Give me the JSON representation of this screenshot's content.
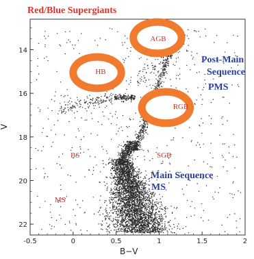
{
  "chart_data": {
    "type": "scatter",
    "title": "Red/Blue Supergiants",
    "xlabel": "B−V",
    "ylabel": "V",
    "xlim": [
      -0.5,
      2.0
    ],
    "ylim": [
      22.5,
      12.6
    ],
    "y_inverted": true,
    "xticks": [
      "-0.5",
      "0",
      "0.5",
      "1",
      "1.5",
      "2"
    ],
    "yticks": [
      "14",
      "16",
      "18",
      "20",
      "22"
    ],
    "grid": false,
    "colors": {
      "ring": "#f07a2e",
      "ring_inner": "#ffffff",
      "blue_text": "#2b3f9a",
      "red_text": "#c8322b",
      "points": "#2a2a2a"
    },
    "annotations": {
      "post_main_1": "Post-Main",
      "post_main_2": "Sequence",
      "pms": "PMS",
      "main_seq": "Main Sequence",
      "ms_blue": "MS",
      "bs": "BS",
      "ms_red": "MS",
      "sgb": "SGB",
      "agb": "AGB",
      "hb": "HB",
      "rgb": "RGB"
    },
    "ring_centers": [
      {
        "label": "AGB",
        "x": 0.98,
        "y": 13.45,
        "rx": 0.28,
        "ry": 0.72
      },
      {
        "label": "HB",
        "x": 0.28,
        "y": 15.05,
        "rx": 0.28,
        "ry": 0.72
      },
      {
        "label": "RGB",
        "x": 1.08,
        "y": 16.65,
        "rx": 0.28,
        "ry": 0.72
      }
    ],
    "point_groups": [
      {
        "region": "main-sequence",
        "x_range": [
          0.35,
          0.95
        ],
        "y_range": [
          19.0,
          22.4
        ],
        "count": 3200,
        "shape": "ms"
      },
      {
        "region": "turnoff-sgb",
        "x_range": [
          0.45,
          0.75
        ],
        "y_range": [
          18.2,
          19.3
        ],
        "count": 500,
        "shape": "turnoff"
      },
      {
        "region": "rgb",
        "x_range": [
          0.7,
          1.15
        ],
        "y_range": [
          13.8,
          18.6
        ],
        "count": 650,
        "shape": "rgb"
      },
      {
        "region": "hb-red-clump",
        "x_range": [
          0.48,
          0.72
        ],
        "y_range": [
          16.0,
          16.4
        ],
        "count": 150,
        "shape": "clump"
      },
      {
        "region": "hb-blue",
        "x_range": [
          -0.15,
          0.45
        ],
        "y_range": [
          15.9,
          17.0
        ],
        "count": 140,
        "shape": "bhb"
      },
      {
        "region": "agb",
        "x_range": [
          0.75,
          1.35
        ],
        "y_range": [
          13.0,
          15.4
        ],
        "count": 90,
        "shape": "agb"
      },
      {
        "region": "field",
        "x_range": [
          -0.45,
          1.95
        ],
        "y_range": [
          13.0,
          22.4
        ],
        "count": 600,
        "shape": "field"
      }
    ]
  }
}
